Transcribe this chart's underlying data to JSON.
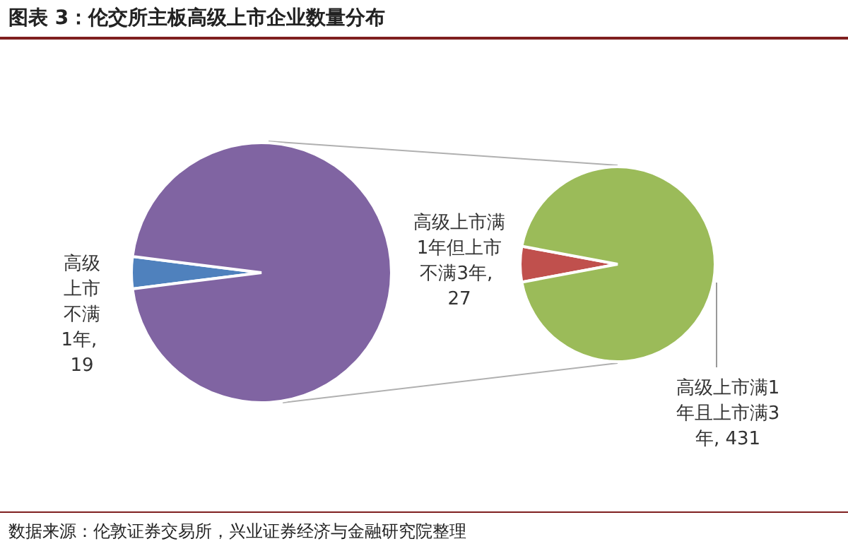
{
  "chart_data": [
    {
      "type": "pie",
      "title": "图表 3：伦交所主板高级上市企业数量分布",
      "annotations": [
        "数据来源：伦敦证券交易所，兴业证券经济与金融研究院整理"
      ],
      "categories": [
        null,
        null
      ],
      "values": [
        19,
        458
      ],
      "colors": [
        "#4f81bd",
        "#8064a2"
      ],
      "value_labels": [
        "高级上市不满1年, 19",
        null
      ]
    },
    {
      "type": "pie",
      "categories": [
        null,
        null
      ],
      "values": [
        27,
        431
      ],
      "colors": [
        "#c0504d",
        "#9bbb59"
      ],
      "value_labels": [
        "高级上市满1年但上市不满3年, 27",
        "高级上市满1年且上市满3年, 431"
      ]
    }
  ]
}
